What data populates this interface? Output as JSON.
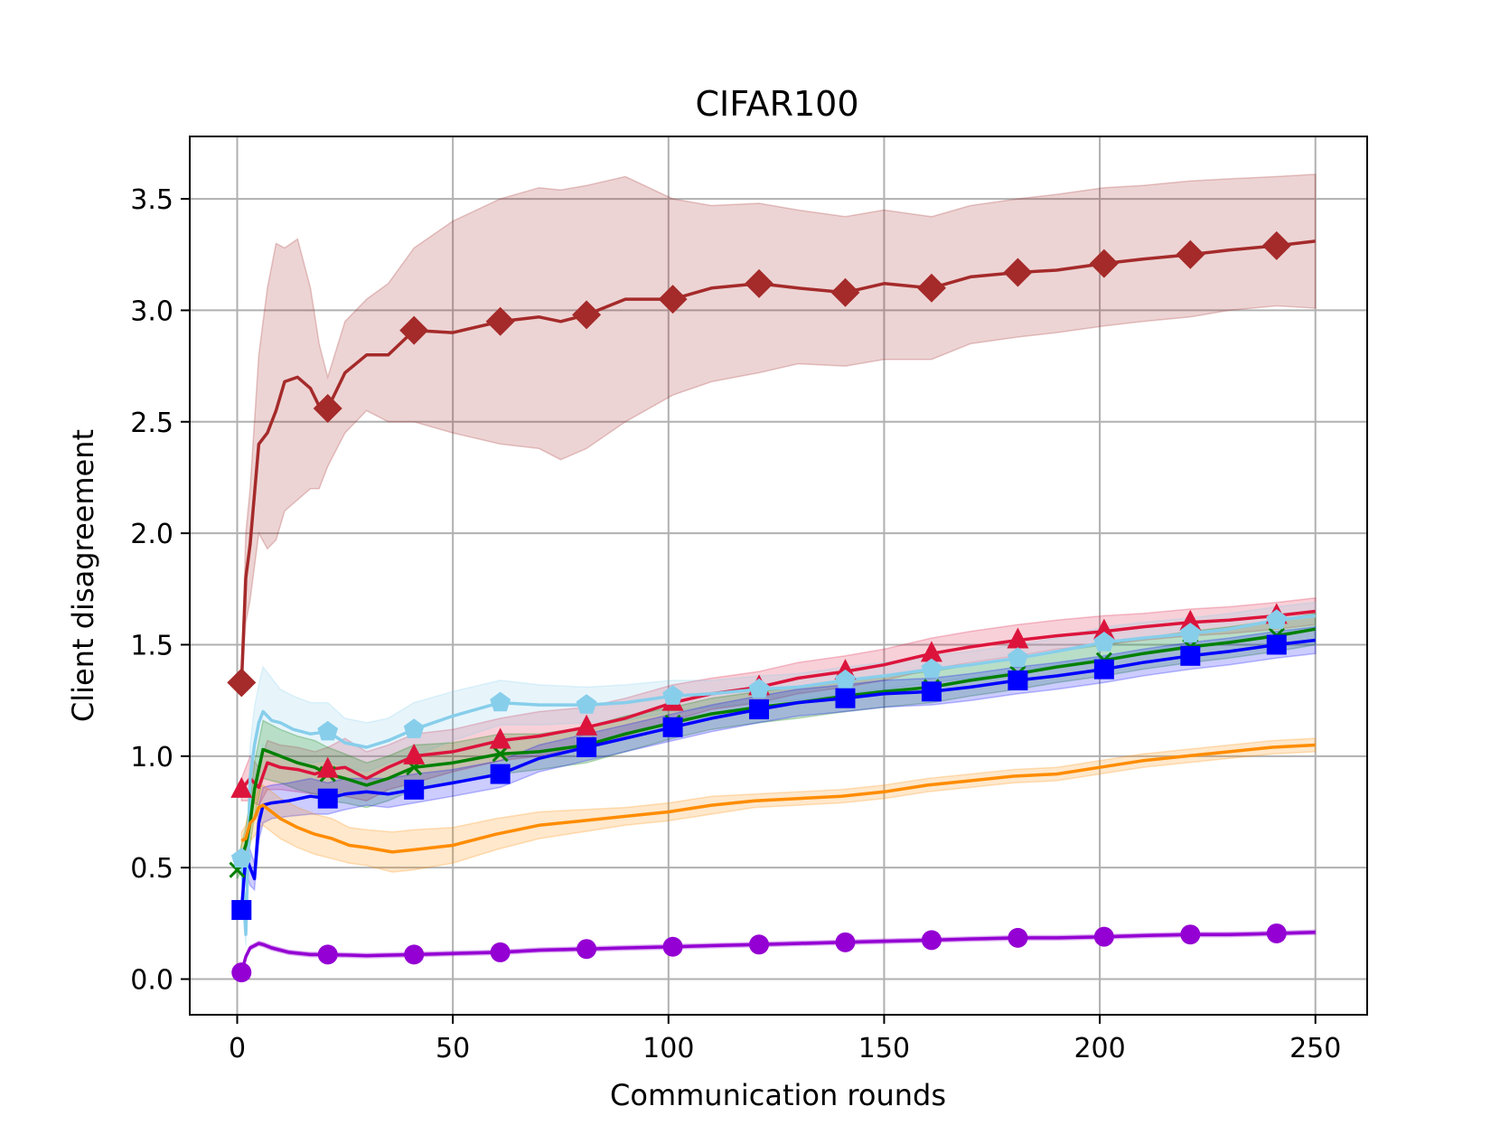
{
  "chart_data": {
    "type": "line",
    "title": "CIFAR100",
    "xlabel": "Communication rounds",
    "ylabel": "Client disagreement",
    "xlim": [
      -11,
      262
    ],
    "ylim": [
      -0.16,
      3.78
    ],
    "xticks": [
      0,
      50,
      100,
      150,
      200,
      250
    ],
    "yticks": [
      0.0,
      0.5,
      1.0,
      1.5,
      2.0,
      2.5,
      3.0,
      3.5
    ],
    "xtick_labels": [
      "0",
      "50",
      "100",
      "150",
      "200",
      "250"
    ],
    "ytick_labels": [
      "0.0",
      "0.5",
      "1.0",
      "1.5",
      "2.0",
      "2.5",
      "3.0",
      "3.5"
    ],
    "grid": true,
    "series": [
      {
        "name": "brown-diamond",
        "color": "#a52a2a",
        "marker": "diamond",
        "x": [
          1,
          2,
          3,
          5,
          7,
          9,
          11,
          14,
          17,
          19,
          21,
          25,
          30,
          35,
          41,
          50,
          61,
          70,
          75,
          81,
          90,
          101,
          110,
          121,
          130,
          141,
          150,
          161,
          170,
          181,
          190,
          201,
          210,
          221,
          230,
          241,
          250
        ],
        "y": [
          1.33,
          1.8,
          1.95,
          2.4,
          2.45,
          2.55,
          2.68,
          2.7,
          2.65,
          2.57,
          2.56,
          2.72,
          2.8,
          2.8,
          2.91,
          2.9,
          2.95,
          2.97,
          2.95,
          2.98,
          3.05,
          3.05,
          3.1,
          3.12,
          3.1,
          3.08,
          3.12,
          3.1,
          3.15,
          3.17,
          3.18,
          3.21,
          3.23,
          3.25,
          3.27,
          3.29,
          3.31
        ],
        "band_lower": [
          1.3,
          1.6,
          1.7,
          2.0,
          1.93,
          1.97,
          2.1,
          2.15,
          2.2,
          2.2,
          2.3,
          2.45,
          2.55,
          2.5,
          2.5,
          2.45,
          2.4,
          2.38,
          2.33,
          2.38,
          2.5,
          2.62,
          2.68,
          2.72,
          2.76,
          2.75,
          2.78,
          2.78,
          2.85,
          2.88,
          2.9,
          2.93,
          2.95,
          2.97,
          3.0,
          3.02,
          3.01
        ],
        "band_upper": [
          1.36,
          2.0,
          2.2,
          2.8,
          3.1,
          3.3,
          3.28,
          3.32,
          3.1,
          2.85,
          2.7,
          2.95,
          3.05,
          3.12,
          3.28,
          3.4,
          3.5,
          3.55,
          3.54,
          3.56,
          3.6,
          3.5,
          3.47,
          3.48,
          3.45,
          3.42,
          3.45,
          3.42,
          3.47,
          3.5,
          3.52,
          3.55,
          3.56,
          3.58,
          3.59,
          3.6,
          3.61
        ],
        "marker_x": [
          1,
          21,
          41,
          61,
          81,
          101,
          121,
          141,
          161,
          181,
          201,
          221,
          241
        ]
      },
      {
        "name": "crimson-triangle",
        "color": "#dc143c",
        "marker": "triangle",
        "x": [
          1,
          3,
          5,
          7,
          10,
          14,
          18,
          21,
          25,
          30,
          35,
          41,
          50,
          61,
          70,
          81,
          90,
          101,
          110,
          121,
          130,
          141,
          150,
          161,
          170,
          181,
          190,
          201,
          210,
          221,
          230,
          241,
          250
        ],
        "y": [
          0.85,
          0.9,
          0.86,
          0.97,
          0.95,
          0.94,
          0.92,
          0.94,
          0.95,
          0.9,
          0.95,
          1.0,
          1.02,
          1.07,
          1.09,
          1.13,
          1.17,
          1.24,
          1.28,
          1.31,
          1.35,
          1.38,
          1.41,
          1.46,
          1.49,
          1.52,
          1.54,
          1.56,
          1.58,
          1.6,
          1.61,
          1.63,
          1.65
        ],
        "band_lower": [
          0.8,
          0.8,
          0.78,
          0.85,
          0.85,
          0.84,
          0.83,
          0.84,
          0.82,
          0.8,
          0.85,
          0.88,
          0.93,
          0.98,
          1.0,
          1.05,
          1.09,
          1.16,
          1.21,
          1.24,
          1.28,
          1.31,
          1.34,
          1.39,
          1.42,
          1.45,
          1.48,
          1.5,
          1.52,
          1.54,
          1.55,
          1.57,
          1.59
        ],
        "band_upper": [
          0.9,
          1.0,
          0.95,
          1.07,
          1.05,
          1.04,
          1.02,
          1.04,
          1.08,
          1.02,
          1.05,
          1.1,
          1.12,
          1.17,
          1.2,
          1.22,
          1.26,
          1.32,
          1.35,
          1.38,
          1.42,
          1.45,
          1.48,
          1.53,
          1.56,
          1.59,
          1.61,
          1.63,
          1.64,
          1.66,
          1.67,
          1.69,
          1.71
        ],
        "marker_x": [
          1,
          21,
          41,
          61,
          81,
          101,
          121,
          141,
          161,
          181,
          201,
          221,
          241
        ]
      },
      {
        "name": "skyblue-pentagon",
        "color": "#87ceeb",
        "marker": "pentagon",
        "x": [
          1,
          2,
          3,
          4,
          5,
          6,
          8,
          10,
          13,
          17,
          21,
          25,
          30,
          35,
          41,
          50,
          61,
          70,
          81,
          90,
          101,
          110,
          121,
          130,
          141,
          150,
          161,
          170,
          181,
          190,
          201,
          210,
          221,
          230,
          241,
          250
        ],
        "y": [
          0.54,
          0.2,
          0.9,
          1.05,
          1.15,
          1.2,
          1.16,
          1.15,
          1.12,
          1.1,
          1.11,
          1.06,
          1.04,
          1.07,
          1.12,
          1.18,
          1.24,
          1.23,
          1.23,
          1.24,
          1.27,
          1.28,
          1.3,
          1.31,
          1.34,
          1.36,
          1.39,
          1.41,
          1.44,
          1.47,
          1.51,
          1.53,
          1.55,
          1.57,
          1.61,
          1.63
        ],
        "band_lower": [
          0.5,
          0.15,
          0.75,
          0.9,
          1.0,
          1.05,
          1.02,
          1.0,
          0.98,
          0.97,
          0.98,
          0.95,
          0.93,
          0.97,
          1.0,
          1.07,
          1.14,
          1.14,
          1.15,
          1.16,
          1.2,
          1.22,
          1.24,
          1.25,
          1.28,
          1.3,
          1.33,
          1.35,
          1.38,
          1.41,
          1.44,
          1.47,
          1.49,
          1.51,
          1.55,
          1.57
        ],
        "band_upper": [
          0.58,
          0.3,
          1.05,
          1.22,
          1.32,
          1.4,
          1.35,
          1.3,
          1.27,
          1.24,
          1.24,
          1.17,
          1.15,
          1.17,
          1.24,
          1.29,
          1.34,
          1.32,
          1.31,
          1.32,
          1.34,
          1.34,
          1.36,
          1.37,
          1.4,
          1.42,
          1.45,
          1.47,
          1.5,
          1.53,
          1.58,
          1.6,
          1.62,
          1.64,
          1.67,
          1.69
        ],
        "marker_x": [
          1,
          21,
          41,
          61,
          81,
          101,
          121,
          141,
          161,
          181,
          201,
          221,
          241
        ]
      },
      {
        "name": "green-x",
        "color": "#008000",
        "marker": "x",
        "x": [
          0,
          2,
          3,
          4,
          6,
          10,
          14,
          18,
          21,
          25,
          30,
          35,
          41,
          50,
          61,
          70,
          81,
          90,
          101,
          110,
          121,
          130,
          141,
          150,
          161,
          170,
          181,
          190,
          201,
          210,
          221,
          230,
          241,
          250
        ],
        "y": [
          0.49,
          0.6,
          0.7,
          0.85,
          1.03,
          1.0,
          0.97,
          0.95,
          0.92,
          0.9,
          0.87,
          0.9,
          0.95,
          0.97,
          1.01,
          1.02,
          1.05,
          1.1,
          1.15,
          1.19,
          1.22,
          1.24,
          1.27,
          1.29,
          1.31,
          1.34,
          1.37,
          1.4,
          1.43,
          1.46,
          1.49,
          1.51,
          1.54,
          1.57
        ],
        "band_lower": [
          0.45,
          0.52,
          0.6,
          0.73,
          0.9,
          0.88,
          0.85,
          0.83,
          0.8,
          0.79,
          0.77,
          0.8,
          0.85,
          0.88,
          0.92,
          0.94,
          0.97,
          1.02,
          1.08,
          1.12,
          1.15,
          1.17,
          1.2,
          1.22,
          1.24,
          1.27,
          1.3,
          1.33,
          1.36,
          1.39,
          1.42,
          1.44,
          1.47,
          1.5
        ],
        "band_upper": [
          0.53,
          0.68,
          0.8,
          0.97,
          1.16,
          1.12,
          1.09,
          1.07,
          1.04,
          1.01,
          0.97,
          1.0,
          1.05,
          1.06,
          1.1,
          1.1,
          1.13,
          1.18,
          1.22,
          1.26,
          1.29,
          1.31,
          1.34,
          1.36,
          1.38,
          1.41,
          1.44,
          1.47,
          1.5,
          1.53,
          1.56,
          1.58,
          1.61,
          1.64
        ],
        "marker_x": [
          0,
          21,
          41,
          61,
          81,
          101,
          121,
          141,
          161,
          181,
          201,
          221,
          241
        ]
      },
      {
        "name": "blue-square",
        "color": "#0000ff",
        "marker": "square",
        "x": [
          1,
          2,
          3,
          4,
          5,
          6,
          8,
          12,
          17,
          21,
          25,
          30,
          35,
          41,
          50,
          61,
          70,
          81,
          90,
          101,
          110,
          121,
          130,
          141,
          150,
          161,
          170,
          181,
          190,
          201,
          210,
          221,
          230,
          241,
          250
        ],
        "y": [
          0.31,
          0.55,
          0.5,
          0.45,
          0.7,
          0.78,
          0.79,
          0.8,
          0.82,
          0.81,
          0.83,
          0.84,
          0.83,
          0.85,
          0.88,
          0.92,
          0.99,
          1.04,
          1.08,
          1.13,
          1.17,
          1.21,
          1.24,
          1.26,
          1.28,
          1.29,
          1.31,
          1.34,
          1.36,
          1.39,
          1.42,
          1.45,
          1.47,
          1.5,
          1.52
        ],
        "band_lower": [
          0.28,
          0.48,
          0.42,
          0.4,
          0.62,
          0.7,
          0.72,
          0.73,
          0.74,
          0.74,
          0.76,
          0.78,
          0.77,
          0.79,
          0.82,
          0.86,
          0.93,
          0.98,
          1.02,
          1.07,
          1.11,
          1.15,
          1.18,
          1.2,
          1.22,
          1.23,
          1.25,
          1.28,
          1.3,
          1.33,
          1.36,
          1.39,
          1.41,
          1.44,
          1.46
        ],
        "band_upper": [
          0.34,
          0.62,
          0.58,
          0.52,
          0.78,
          0.86,
          0.87,
          0.88,
          0.9,
          0.88,
          0.9,
          0.9,
          0.9,
          0.92,
          0.94,
          0.98,
          1.05,
          1.1,
          1.14,
          1.19,
          1.23,
          1.27,
          1.3,
          1.32,
          1.34,
          1.35,
          1.37,
          1.4,
          1.42,
          1.45,
          1.48,
          1.51,
          1.53,
          1.56,
          1.58
        ],
        "marker_x": [
          1,
          21,
          41,
          61,
          81,
          101,
          121,
          141,
          161,
          181,
          201,
          221,
          241
        ]
      },
      {
        "name": "orange-line",
        "color": "#ff8c00",
        "marker": "none",
        "x": [
          1,
          2,
          3,
          4,
          5,
          6,
          8,
          10,
          14,
          18,
          22,
          26,
          30,
          36,
          41,
          50,
          60,
          70,
          80,
          90,
          100,
          110,
          120,
          130,
          140,
          150,
          160,
          170,
          180,
          190,
          200,
          210,
          220,
          230,
          240,
          250
        ],
        "y": [
          0.62,
          0.63,
          0.7,
          0.72,
          0.77,
          0.78,
          0.75,
          0.72,
          0.68,
          0.65,
          0.63,
          0.6,
          0.59,
          0.57,
          0.58,
          0.6,
          0.65,
          0.69,
          0.71,
          0.73,
          0.75,
          0.78,
          0.8,
          0.81,
          0.82,
          0.84,
          0.87,
          0.89,
          0.91,
          0.92,
          0.95,
          0.98,
          1.0,
          1.02,
          1.04,
          1.05
        ],
        "band_lower": [
          0.58,
          0.57,
          0.62,
          0.64,
          0.68,
          0.69,
          0.66,
          0.63,
          0.59,
          0.56,
          0.54,
          0.52,
          0.51,
          0.48,
          0.49,
          0.52,
          0.58,
          0.63,
          0.66,
          0.69,
          0.71,
          0.74,
          0.77,
          0.78,
          0.79,
          0.81,
          0.84,
          0.86,
          0.88,
          0.89,
          0.92,
          0.95,
          0.97,
          0.99,
          1.01,
          1.02
        ],
        "band_upper": [
          0.66,
          0.69,
          0.78,
          0.8,
          0.86,
          0.87,
          0.84,
          0.81,
          0.77,
          0.74,
          0.72,
          0.68,
          0.67,
          0.66,
          0.67,
          0.68,
          0.72,
          0.75,
          0.76,
          0.77,
          0.79,
          0.82,
          0.83,
          0.84,
          0.85,
          0.87,
          0.9,
          0.92,
          0.94,
          0.95,
          0.98,
          1.01,
          1.03,
          1.05,
          1.07,
          1.08
        ],
        "marker_x": []
      },
      {
        "name": "purple-circle",
        "color": "#9400d3",
        "marker": "circle",
        "x": [
          1,
          2,
          3,
          4,
          5,
          6,
          8,
          12,
          17,
          21,
          30,
          41,
          50,
          61,
          70,
          81,
          90,
          101,
          110,
          121,
          130,
          141,
          150,
          161,
          170,
          181,
          190,
          201,
          210,
          221,
          230,
          241,
          250
        ],
        "y": [
          0.03,
          0.1,
          0.14,
          0.15,
          0.16,
          0.155,
          0.14,
          0.12,
          0.11,
          0.11,
          0.105,
          0.11,
          0.115,
          0.12,
          0.13,
          0.135,
          0.14,
          0.145,
          0.15,
          0.155,
          0.16,
          0.165,
          0.17,
          0.175,
          0.18,
          0.185,
          0.185,
          0.19,
          0.195,
          0.2,
          0.2,
          0.205,
          0.21
        ],
        "band_lower": [
          0.02,
          0.09,
          0.13,
          0.14,
          0.15,
          0.145,
          0.13,
          0.11,
          0.1,
          0.1,
          0.095,
          0.1,
          0.105,
          0.11,
          0.12,
          0.125,
          0.13,
          0.135,
          0.14,
          0.145,
          0.15,
          0.155,
          0.16,
          0.165,
          0.17,
          0.175,
          0.175,
          0.18,
          0.185,
          0.19,
          0.19,
          0.195,
          0.2
        ],
        "band_upper": [
          0.04,
          0.11,
          0.15,
          0.16,
          0.17,
          0.165,
          0.15,
          0.13,
          0.12,
          0.12,
          0.115,
          0.12,
          0.125,
          0.13,
          0.14,
          0.145,
          0.15,
          0.155,
          0.16,
          0.165,
          0.17,
          0.175,
          0.18,
          0.185,
          0.19,
          0.195,
          0.195,
          0.2,
          0.205,
          0.21,
          0.21,
          0.215,
          0.22
        ],
        "marker_x": [
          1,
          21,
          41,
          61,
          81,
          101,
          121,
          141,
          161,
          181,
          201,
          221,
          241
        ]
      }
    ]
  }
}
